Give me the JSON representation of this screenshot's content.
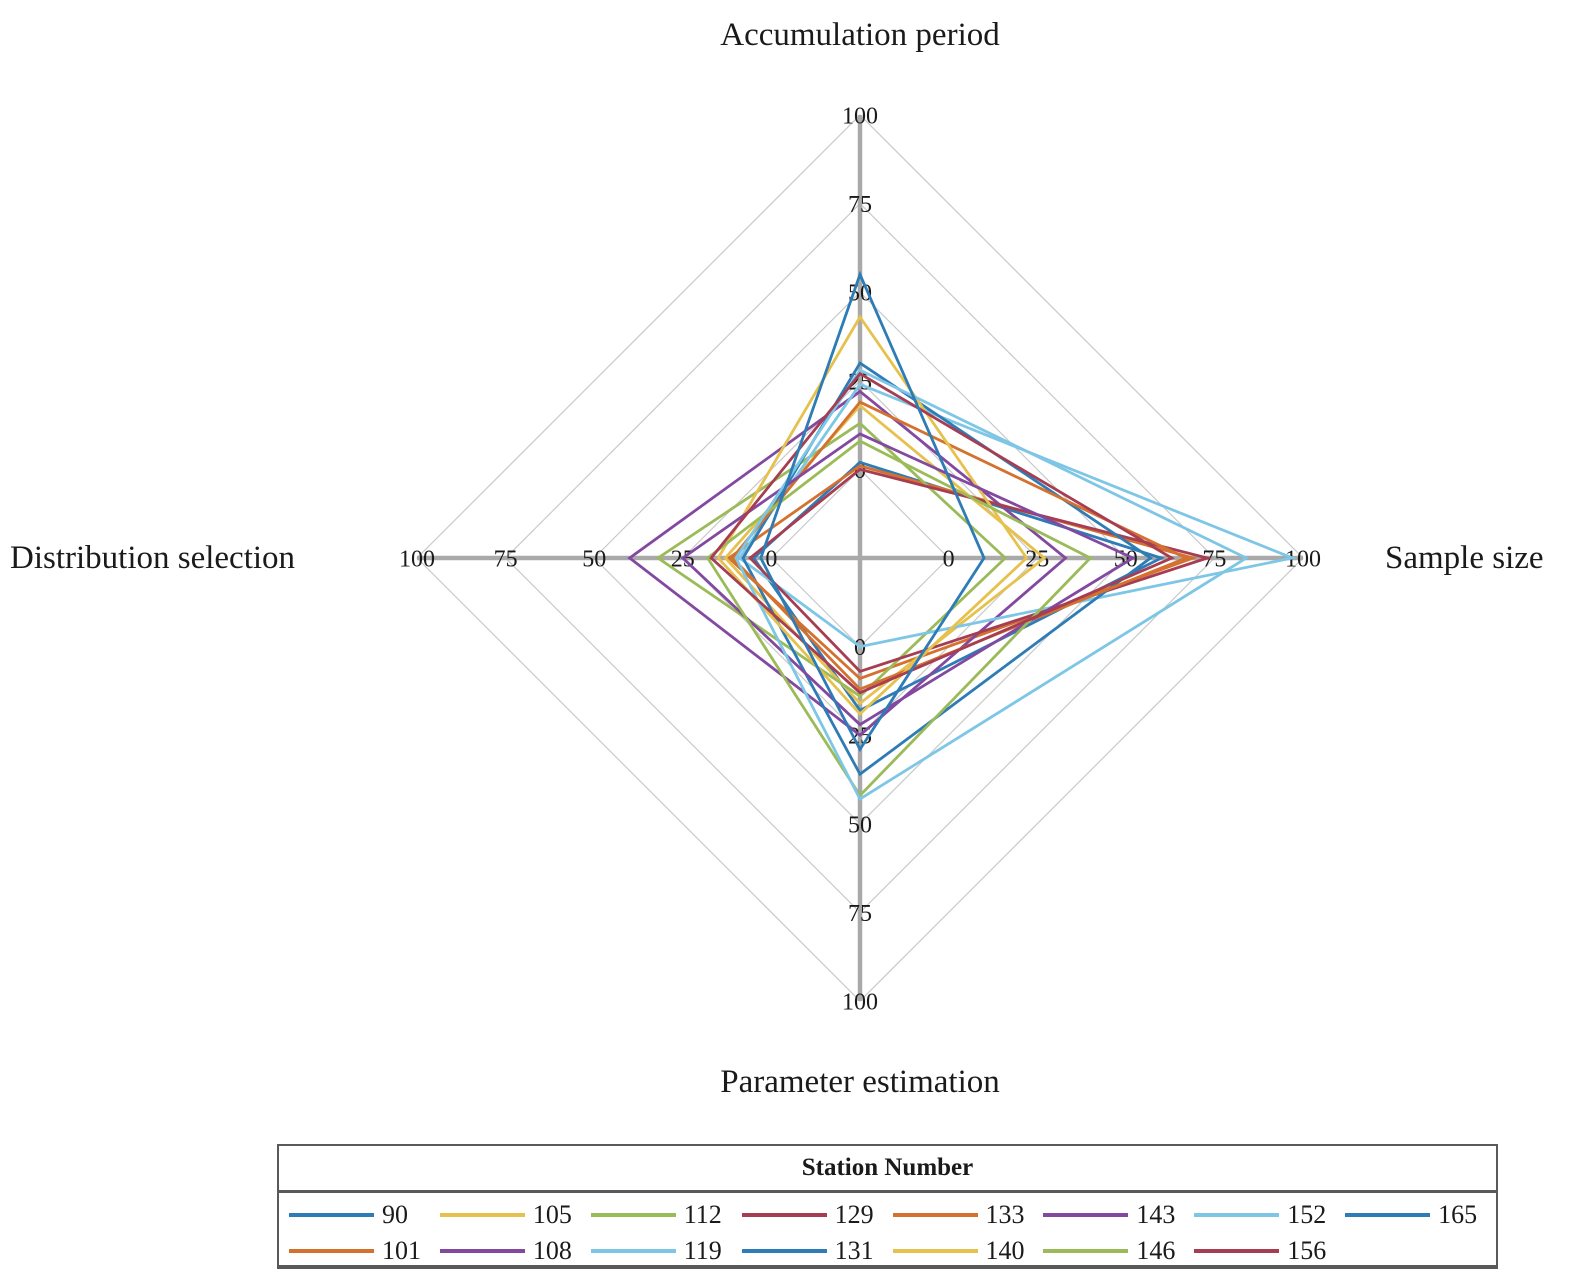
{
  "chart_data": {
    "type": "radar",
    "axes": [
      "Accumulation period",
      "Sample size",
      "Parameter estimation",
      "Distribution selection"
    ],
    "axis_min": -25,
    "axis_max": 100,
    "ticks": [
      0,
      25,
      50,
      75,
      100
    ],
    "grid": true,
    "legend_position": "bottom",
    "legend_title": "Station Number",
    "series": [
      {
        "name": "90",
        "color": "#2E7CB5",
        "values": [
          2,
          60,
          18,
          5
        ]
      },
      {
        "name": "101",
        "color": "#D4712F",
        "values": [
          1,
          69,
          9,
          12
        ]
      },
      {
        "name": "105",
        "color": "#E6C14D",
        "values": [
          18,
          27,
          16,
          13
        ]
      },
      {
        "name": "108",
        "color": "#83489F",
        "values": [
          22,
          33,
          25,
          40
        ]
      },
      {
        "name": "112",
        "color": "#9BBB59",
        "values": [
          13,
          16,
          14,
          32
        ]
      },
      {
        "name": "119",
        "color": "#7EC6E6",
        "values": [
          24,
          97,
          0,
          9
        ]
      },
      {
        "name": "129",
        "color": "#A63D52",
        "values": [
          0,
          73,
          7,
          6
        ]
      },
      {
        "name": "131",
        "color": "#2E7CB5",
        "values": [
          30,
          57,
          36,
          8
        ]
      },
      {
        "name": "133",
        "color": "#D4712F",
        "values": [
          19,
          67,
          12,
          11
        ]
      },
      {
        "name": "140",
        "color": "#E6C14D",
        "values": [
          43,
          22,
          19,
          15
        ]
      },
      {
        "name": "143",
        "color": "#83489F",
        "values": [
          10,
          52,
          22,
          25
        ]
      },
      {
        "name": "146",
        "color": "#9BBB59",
        "values": [
          8,
          40,
          42,
          18
        ]
      },
      {
        "name": "152",
        "color": "#7EC6E6",
        "values": [
          28,
          84,
          43,
          10
        ]
      },
      {
        "name": "156",
        "color": "#A63D52",
        "values": [
          27,
          63,
          13,
          17
        ]
      },
      {
        "name": "165",
        "color": "#2E7CB5",
        "values": [
          55,
          10,
          29,
          3
        ]
      }
    ]
  }
}
